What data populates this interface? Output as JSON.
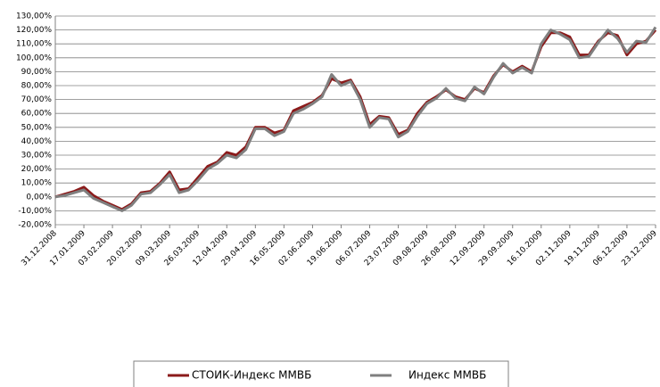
{
  "chart_data": {
    "type": "line",
    "categories": [
      "31.12.2008",
      null,
      null,
      "17.01.2009",
      null,
      null,
      "03.02.2009",
      null,
      null,
      "20.02.2009",
      null,
      null,
      "09.03.2009",
      null,
      null,
      "26.03.2009",
      null,
      null,
      "12.04.2009",
      null,
      null,
      "29.04.2009",
      null,
      null,
      "16.05.2009",
      null,
      null,
      "02.06.2009",
      null,
      null,
      "19.06.2009",
      null,
      null,
      "06.07.2009",
      null,
      null,
      "23.07.2009",
      null,
      null,
      "09.08.2009",
      null,
      null,
      "26.08.2009",
      null,
      null,
      "12.09.2009",
      null,
      null,
      "29.09.2009",
      null,
      null,
      "16.10.2009",
      null,
      null,
      "02.11.2009",
      null,
      null,
      "19.11.2009",
      null,
      null,
      "06.12.2009",
      null,
      null,
      "23.12.2009"
    ],
    "series": [
      {
        "name": "СТОИК-Индекс ММВБ",
        "color": "#8b1a1a",
        "values": [
          0,
          2,
          4,
          7,
          1,
          -3,
          -6,
          -9,
          -5,
          3,
          4,
          10,
          18,
          5,
          6,
          14,
          22,
          25,
          32,
          30,
          36,
          50,
          50,
          46,
          48,
          62,
          65,
          68,
          73,
          85,
          82,
          84,
          72,
          52,
          58,
          57,
          45,
          48,
          60,
          68,
          72,
          77,
          72,
          70,
          78,
          75,
          87,
          95,
          90,
          94,
          90,
          108,
          118,
          118,
          115,
          102,
          102,
          112,
          118,
          116,
          102,
          110,
          112,
          120
        ]
      },
      {
        "name": "Индекс ММВБ",
        "color": "#7f7f7f",
        "values": [
          0,
          1,
          3,
          5,
          -1,
          -4,
          -7,
          -10,
          -6,
          2,
          3,
          9,
          16,
          3,
          5,
          12,
          20,
          24,
          30,
          28,
          34,
          49,
          49,
          44,
          47,
          60,
          63,
          67,
          72,
          88,
          80,
          83,
          70,
          50,
          57,
          56,
          43,
          47,
          58,
          67,
          71,
          78,
          71,
          69,
          79,
          74,
          86,
          96,
          89,
          93,
          89,
          110,
          120,
          117,
          113,
          100,
          101,
          111,
          120,
          114,
          104,
          112,
          111,
          122
        ]
      }
    ],
    "ylim": [
      -20,
      130
    ],
    "yticks": [
      {
        "value": -20,
        "label": "-20,00%"
      },
      {
        "value": -10,
        "label": "-10,00%"
      },
      {
        "value": 0,
        "label": "0,00%"
      },
      {
        "value": 10,
        "label": "10,00%"
      },
      {
        "value": 20,
        "label": "20,00%"
      },
      {
        "value": 30,
        "label": "30,00%"
      },
      {
        "value": 40,
        "label": "40,00%"
      },
      {
        "value": 50,
        "label": "50,00%"
      },
      {
        "value": 60,
        "label": "60,00%"
      },
      {
        "value": 70,
        "label": "70,00%"
      },
      {
        "value": 80,
        "label": "80,00%"
      },
      {
        "value": 90,
        "label": "90,00%"
      },
      {
        "value": 100,
        "label": "100,00%"
      },
      {
        "value": 110,
        "label": "110,00%"
      },
      {
        "value": 120,
        "label": "120,00%"
      },
      {
        "value": 130,
        "label": "130,00%"
      }
    ],
    "grid": true,
    "legend": "bottom"
  }
}
